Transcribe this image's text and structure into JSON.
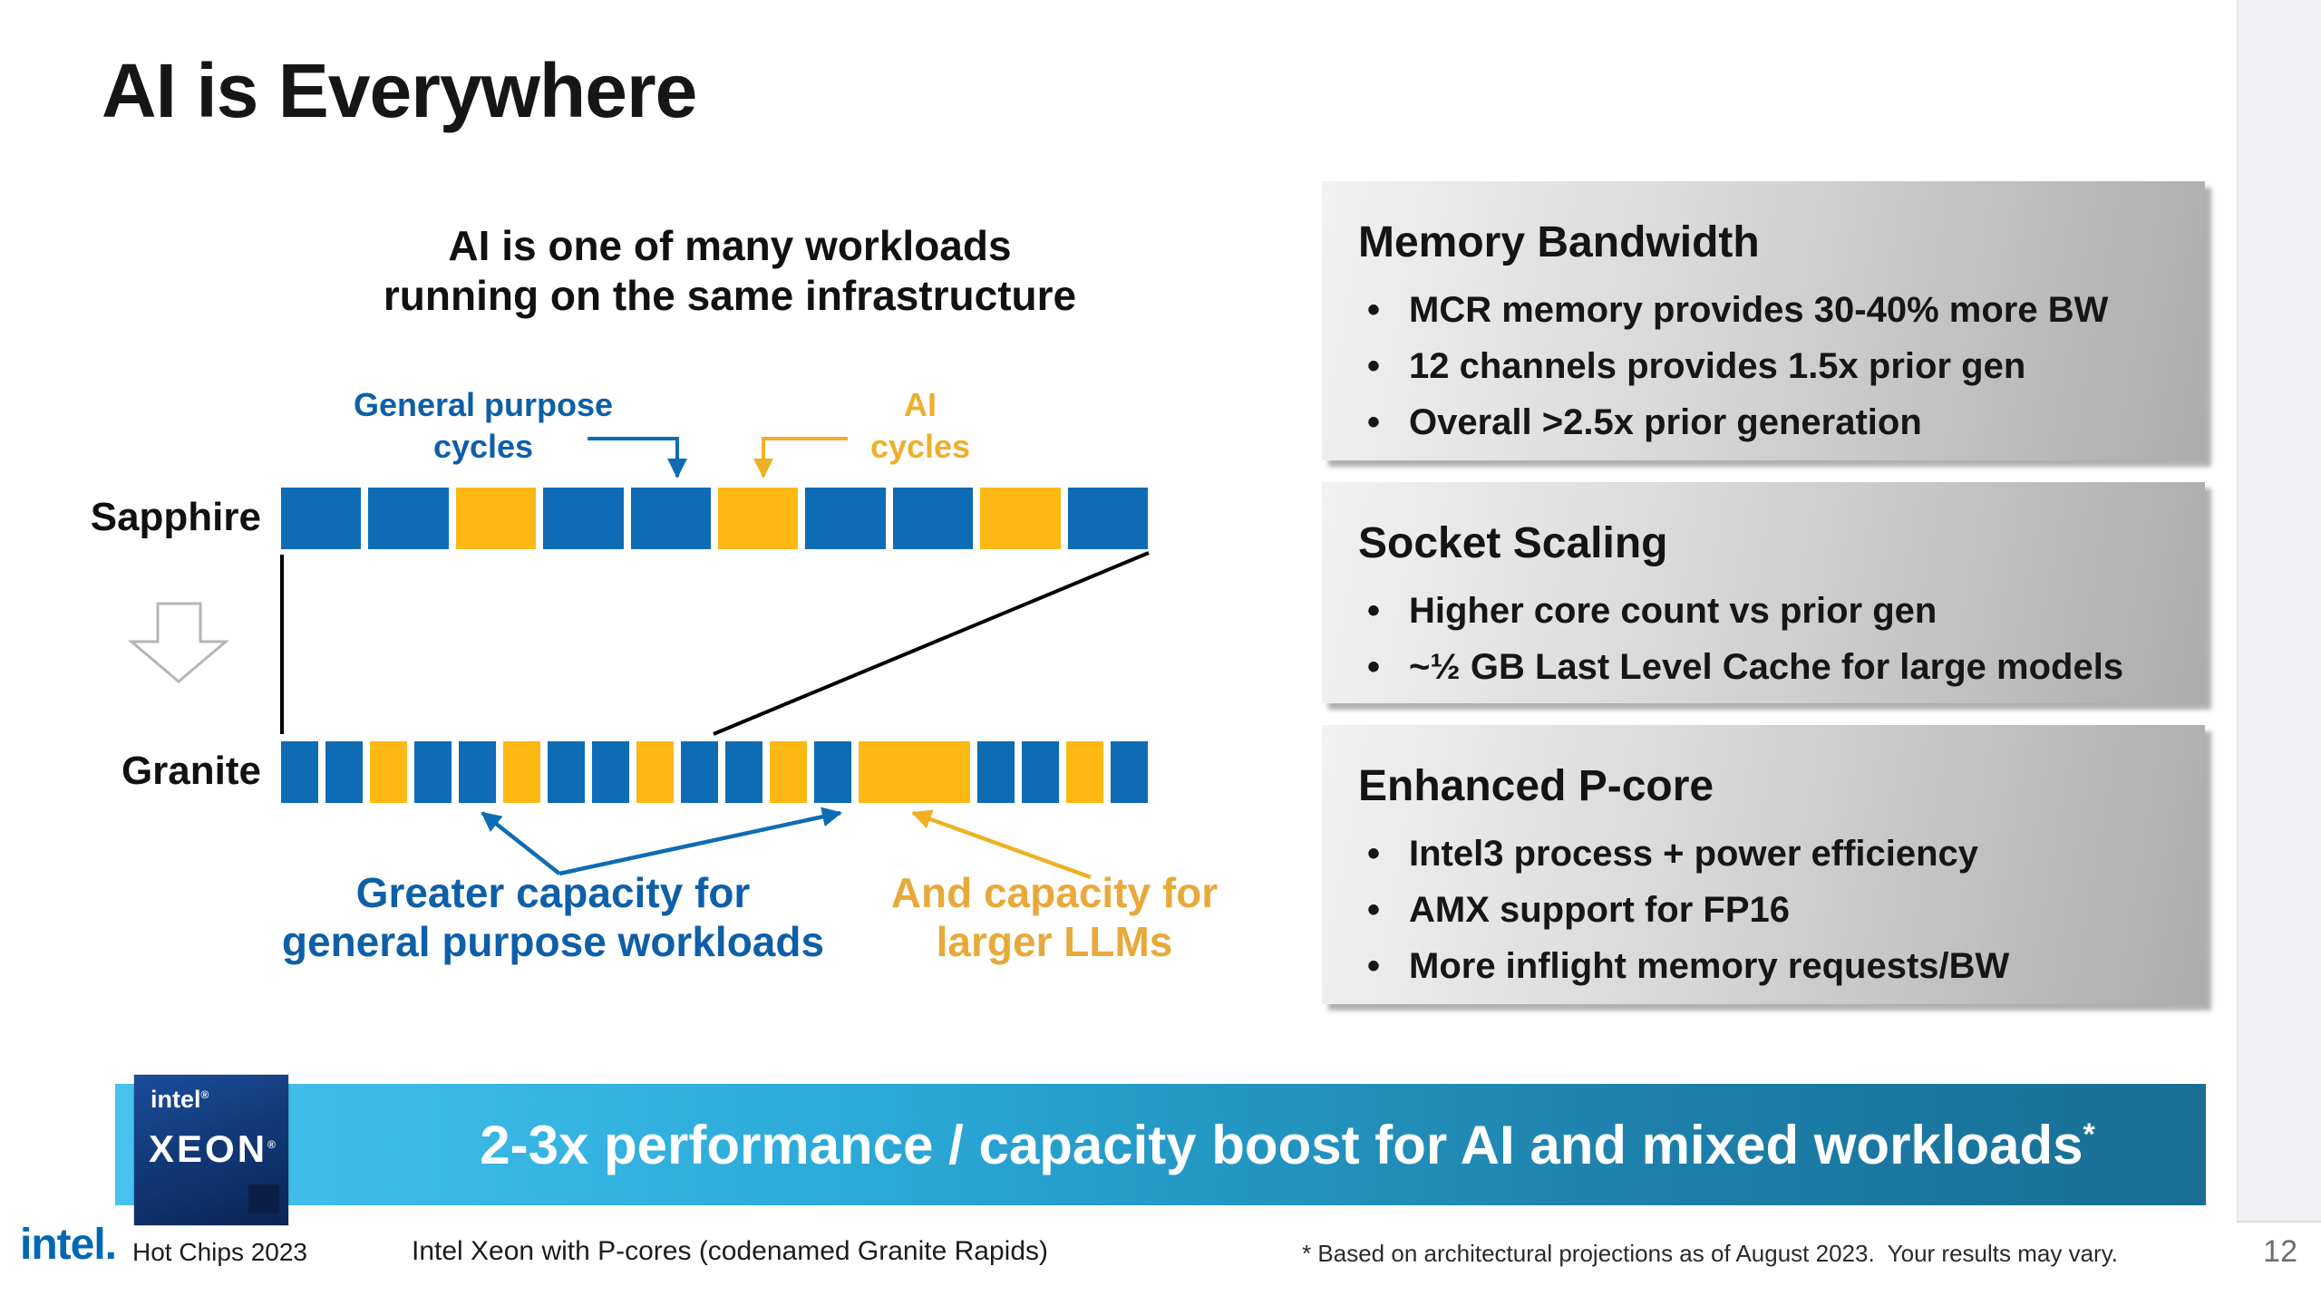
{
  "slide": {
    "title": "AI is Everywhere",
    "page_number": "12"
  },
  "diagram": {
    "heading_lines": [
      "AI is one of many workloads",
      "running on the same infrastructure"
    ],
    "general_purpose_label_lines": [
      "General purpose",
      "cycles"
    ],
    "ai_label_lines": [
      "AI",
      "cycles"
    ],
    "rows": [
      {
        "label": "Sapphire",
        "pattern": [
          {
            "color": "blue",
            "units": 1
          },
          {
            "color": "blue",
            "units": 1
          },
          {
            "color": "yellow",
            "units": 1
          },
          {
            "color": "blue",
            "units": 1
          },
          {
            "color": "blue",
            "units": 1
          },
          {
            "color": "yellow",
            "units": 1
          },
          {
            "color": "blue",
            "units": 1
          },
          {
            "color": "blue",
            "units": 1
          },
          {
            "color": "yellow",
            "units": 1
          },
          {
            "color": "blue",
            "units": 1
          }
        ]
      },
      {
        "label": "Granite",
        "pattern": [
          {
            "color": "blue",
            "units": 1
          },
          {
            "color": "blue",
            "units": 1
          },
          {
            "color": "yellow",
            "units": 1
          },
          {
            "color": "blue",
            "units": 1
          },
          {
            "color": "blue",
            "units": 1
          },
          {
            "color": "yellow",
            "units": 1
          },
          {
            "color": "blue",
            "units": 1
          },
          {
            "color": "blue",
            "units": 1
          },
          {
            "color": "yellow",
            "units": 1
          },
          {
            "color": "blue",
            "units": 1
          },
          {
            "color": "blue",
            "units": 1
          },
          {
            "color": "yellow",
            "units": 1
          },
          {
            "color": "blue",
            "units": 1
          },
          {
            "color": "yellow",
            "units": 3
          },
          {
            "color": "blue",
            "units": 1
          },
          {
            "color": "blue",
            "units": 1
          },
          {
            "color": "yellow",
            "units": 1
          },
          {
            "color": "blue",
            "units": 1
          }
        ]
      }
    ],
    "caption_general_lines": [
      "Greater capacity for",
      "general purpose workloads"
    ],
    "caption_llm_lines": [
      "And capacity for",
      "larger LLMs"
    ],
    "colors": {
      "blue": "#0E6CB5",
      "yellow": "#FDB813"
    }
  },
  "panels": [
    {
      "title": "Memory Bandwidth",
      "bullets": [
        "MCR memory provides 30-40% more BW",
        "12 channels provides 1.5x prior gen",
        "Overall >2.5x prior generation"
      ]
    },
    {
      "title": "Socket Scaling",
      "bullets": [
        "Higher core count vs prior gen",
        "~½ GB Last Level Cache for large models"
      ]
    },
    {
      "title": "Enhanced P-core",
      "bullets": [
        "Intel3 process + power efficiency",
        "AMX support for FP16",
        "More inflight memory requests/BW"
      ]
    }
  ],
  "banner": {
    "message": "2-3x performance / capacity boost for AI and mixed workloads",
    "asterisk": "*",
    "badge": {
      "brand": "intel",
      "brand_mark": "®",
      "product": "XEON",
      "product_mark": "®"
    }
  },
  "footer": {
    "logo": "intel.",
    "event": "Hot Chips 2023",
    "subtitle": "Intel Xeon with P-cores (codenamed Granite Rapids)",
    "footnote": "* Based on architectural projections as of August 2023.  Your results may vary.",
    "page_number": "12"
  }
}
